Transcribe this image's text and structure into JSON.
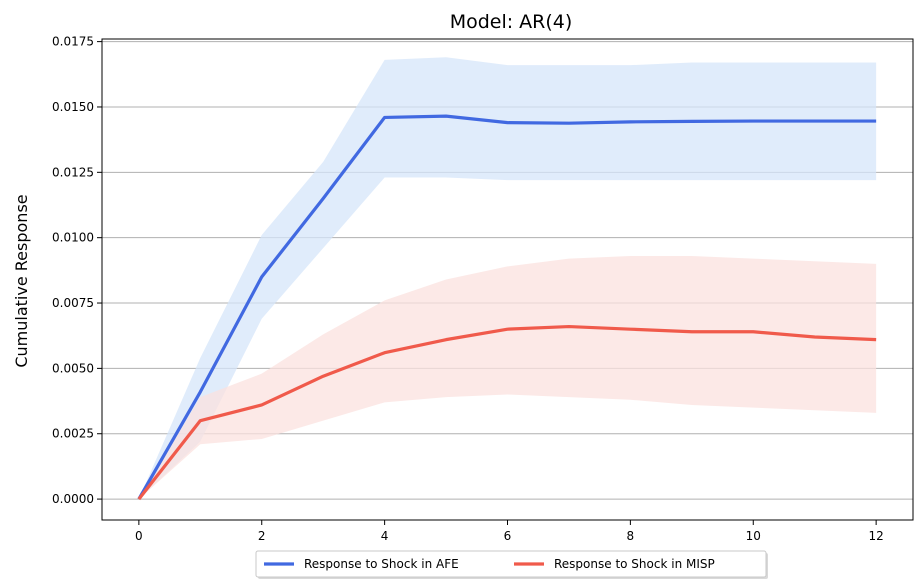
{
  "chart_data": {
    "type": "line",
    "title": "Model: AR(4)",
    "xlabel": "",
    "ylabel": "Cumulative Response",
    "xlim": [
      -0.6,
      12.6
    ],
    "ylim": [
      -0.0008,
      0.0176
    ],
    "x_ticks": [
      0,
      2,
      4,
      6,
      8,
      10,
      12
    ],
    "y_ticks": [
      0.0,
      0.0025,
      0.005,
      0.0075,
      0.01,
      0.0125,
      0.015,
      0.0175
    ],
    "y_tick_labels": [
      "0.0000",
      "0.0025",
      "0.0050",
      "0.0075",
      "0.0100",
      "0.0125",
      "0.0150",
      "0.0175"
    ],
    "grid": "horizontal",
    "legend_position": "bottom-center",
    "x": [
      0,
      1,
      2,
      3,
      4,
      5,
      6,
      7,
      8,
      9,
      10,
      11,
      12
    ],
    "series": [
      {
        "name": "Response to Shock in AFE",
        "color": "#4169e1",
        "band_color": "#d6e6fa",
        "values": [
          0.0,
          0.0041,
          0.0085,
          0.0115,
          0.0146,
          0.01465,
          0.0144,
          0.01438,
          0.01443,
          0.01445,
          0.01446,
          0.01446,
          0.01446
        ],
        "lower": [
          0.0,
          0.0022,
          0.0069,
          0.0096,
          0.0123,
          0.0123,
          0.0122,
          0.0122,
          0.0122,
          0.0122,
          0.0122,
          0.0122,
          0.0122
        ],
        "upper": [
          0.0,
          0.0054,
          0.0101,
          0.0129,
          0.0168,
          0.0169,
          0.0166,
          0.0166,
          0.0166,
          0.0167,
          0.0167,
          0.0167,
          0.0167
        ]
      },
      {
        "name": "Response to Shock in MISP",
        "color": "#f05a4b",
        "band_color": "#fbe2df",
        "values": [
          0.0,
          0.003,
          0.0036,
          0.0047,
          0.0056,
          0.0061,
          0.0065,
          0.0066,
          0.0065,
          0.0064,
          0.0064,
          0.0062,
          0.0061
        ],
        "lower": [
          0.0,
          0.0021,
          0.0023,
          0.003,
          0.0037,
          0.0039,
          0.004,
          0.0039,
          0.0038,
          0.0036,
          0.0035,
          0.0034,
          0.0033
        ],
        "upper": [
          0.0,
          0.0039,
          0.0048,
          0.0063,
          0.0076,
          0.0084,
          0.0089,
          0.0092,
          0.0093,
          0.0093,
          0.0092,
          0.0091,
          0.009
        ]
      }
    ]
  }
}
